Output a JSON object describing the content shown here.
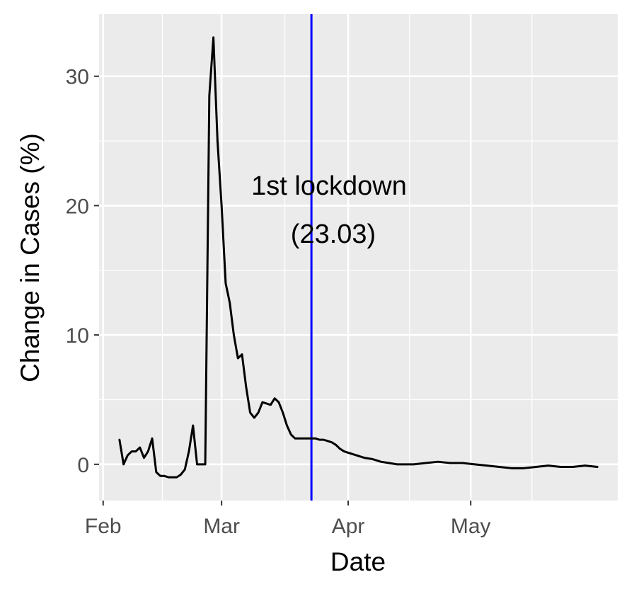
{
  "chart_data": {
    "type": "line",
    "xlabel": "Date",
    "ylabel": "Change in Cases (%)",
    "x_ticks": [
      {
        "date": "2020-02-01",
        "label": "Feb"
      },
      {
        "date": "2020-03-01",
        "label": "Mar"
      },
      {
        "date": "2020-04-01",
        "label": "Apr"
      },
      {
        "date": "2020-05-01",
        "label": "May"
      }
    ],
    "y_ticks": [
      0,
      10,
      20,
      30
    ],
    "xlim": [
      "2020-01-31",
      "2020-06-06"
    ],
    "ylim": [
      -2.8,
      34.8
    ],
    "grid": true,
    "line_color": "#000000",
    "vline": {
      "date": "2020-03-23",
      "color": "#0000ff"
    },
    "annotation": {
      "line1": "1st lockdown",
      "line2": "(23.03)"
    },
    "series": [
      {
        "x": [
          "2020-02-05",
          "2020-02-06",
          "2020-02-07",
          "2020-02-08",
          "2020-02-09",
          "2020-02-10",
          "2020-02-11",
          "2020-02-12",
          "2020-02-13",
          "2020-02-14",
          "2020-02-15",
          "2020-02-16",
          "2020-02-17",
          "2020-02-18",
          "2020-02-19",
          "2020-02-20",
          "2020-02-21",
          "2020-02-22",
          "2020-02-23",
          "2020-02-24",
          "2020-02-25",
          "2020-02-26",
          "2020-02-27",
          "2020-02-28",
          "2020-02-29",
          "2020-03-01",
          "2020-03-02",
          "2020-03-03",
          "2020-03-04",
          "2020-03-05",
          "2020-03-06",
          "2020-03-07",
          "2020-03-08",
          "2020-03-09",
          "2020-03-10",
          "2020-03-11",
          "2020-03-12",
          "2020-03-13",
          "2020-03-14",
          "2020-03-15",
          "2020-03-16",
          "2020-03-17",
          "2020-03-18",
          "2020-03-19",
          "2020-03-20",
          "2020-03-21",
          "2020-03-22",
          "2020-03-23",
          "2020-03-24",
          "2020-03-25",
          "2020-03-26",
          "2020-03-27",
          "2020-03-28",
          "2020-03-29",
          "2020-03-30",
          "2020-03-31",
          "2020-04-01",
          "2020-04-03",
          "2020-04-05",
          "2020-04-07",
          "2020-04-09",
          "2020-04-11",
          "2020-04-13",
          "2020-04-15",
          "2020-04-17",
          "2020-04-20",
          "2020-04-23",
          "2020-04-26",
          "2020-04-29",
          "2020-05-02",
          "2020-05-05",
          "2020-05-08",
          "2020-05-11",
          "2020-05-14",
          "2020-05-17",
          "2020-05-20",
          "2020-05-23",
          "2020-05-26",
          "2020-05-29",
          "2020-06-01"
        ],
        "values": [
          1.9,
          0.0,
          0.7,
          1.0,
          1.0,
          1.3,
          0.5,
          1.0,
          2.0,
          -0.6,
          -0.9,
          -0.9,
          -1.0,
          -1.0,
          -1.0,
          -0.8,
          -0.4,
          1.0,
          3.0,
          0.0,
          0.0,
          0.0,
          28.5,
          33.0,
          25.0,
          20.0,
          14.0,
          12.5,
          10.0,
          8.2,
          8.5,
          6.0,
          4.0,
          3.6,
          4.0,
          4.8,
          4.7,
          4.6,
          5.1,
          4.8,
          4.0,
          3.0,
          2.3,
          2.0,
          2.0,
          2.0,
          2.0,
          2.0,
          2.0,
          1.9,
          1.9,
          1.8,
          1.7,
          1.5,
          1.2,
          1.0,
          0.9,
          0.7,
          0.5,
          0.4,
          0.2,
          0.1,
          0.0,
          0.0,
          0.0,
          0.1,
          0.2,
          0.1,
          0.1,
          0.0,
          -0.1,
          -0.2,
          -0.3,
          -0.3,
          -0.2,
          -0.1,
          -0.2,
          -0.2,
          -0.1,
          -0.2
        ]
      }
    ]
  }
}
